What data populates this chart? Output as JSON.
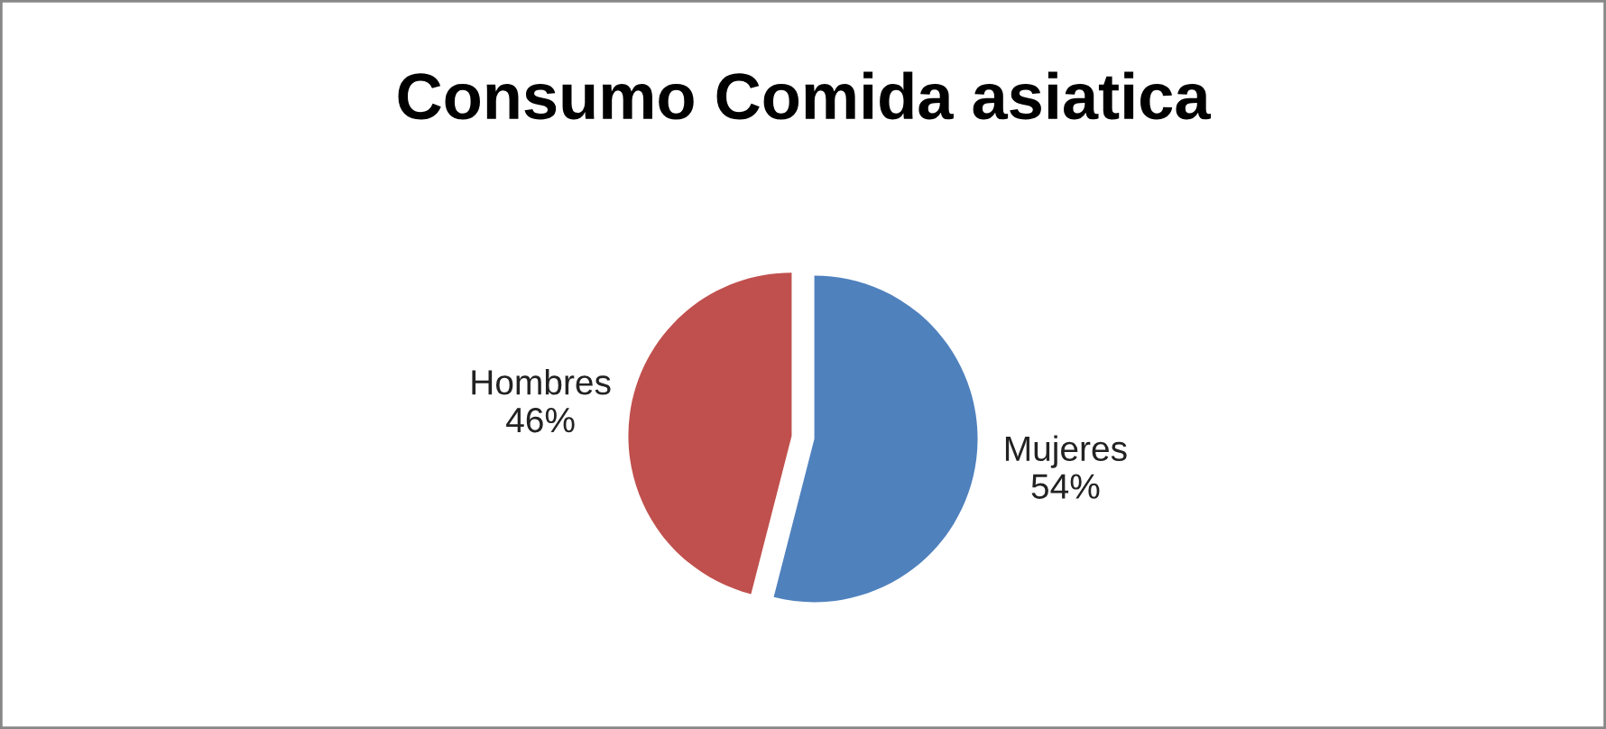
{
  "chart_data": {
    "type": "pie",
    "title": "Consumo Comida asiatica",
    "categories": [
      "Mujeres",
      "Hombres"
    ],
    "values": [
      54,
      46
    ],
    "value_labels": [
      "54%",
      "46%"
    ],
    "colors": [
      "#4f81bd",
      "#c0504d"
    ],
    "legend": false
  }
}
